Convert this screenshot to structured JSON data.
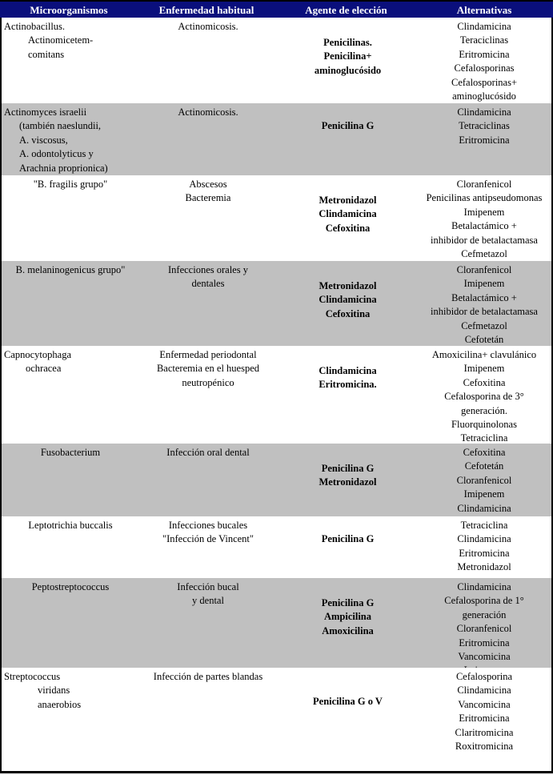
{
  "header": {
    "microorganismos": "Microorganismos",
    "enfermedad": "Enfermedad habitual",
    "agente": "Agente de elección",
    "alternativas": "Alternativas"
  },
  "colors": {
    "header_bg": "#0a0f7c",
    "stripe": "#c0c0c0"
  },
  "rows": [
    {
      "micro": [
        "Actinobacillus.",
        "Actinomicetem-",
        "comitans"
      ],
      "enfermedad": [
        "Actinomicosis."
      ],
      "agente": [
        "Penicilinas.",
        "Penicilina+",
        "aminoglucósido"
      ],
      "alternativas": [
        "Clindamicina",
        "Teraciclinas",
        "Eritromicina",
        "Cefalosporinas",
        "Cefalosporinas+",
        "aminoglucósido"
      ]
    },
    {
      "micro": [
        "Actinomyces israelii",
        "(también naeslundii,",
        "A. viscosus,",
        "A. odontolyticus y",
        "Arachnia proprionica)"
      ],
      "enfermedad": [
        "Actinomicosis."
      ],
      "agente": [
        "Penicilina G"
      ],
      "alternativas": [
        "Clindamicina",
        "Tetraciclinas",
        "Eritromicina"
      ]
    },
    {
      "micro": [
        "\"B. fragilis grupo\""
      ],
      "enfermedad": [
        "Abscesos",
        "Bacteremia"
      ],
      "agente": [
        "Metronidazol",
        "Clindamicina",
        "Cefoxitina"
      ],
      "alternativas": [
        "Cloranfenicol",
        "Penicilinas antipseudomonas",
        "Imipenem",
        "Betalactámico +",
        "inhibidor de betalactamasa",
        "Cefmetazol"
      ]
    },
    {
      "micro": [
        "B. melaninogenicus grupo\""
      ],
      "enfermedad": [
        "Infecciones orales y",
        "dentales"
      ],
      "agente": [
        "Metronidazol",
        "Clindamicina",
        "Cefoxitina"
      ],
      "alternativas": [
        "Cloranfenicol",
        "Imipenem",
        "Betalactámico +",
        "inhibidor de betalactamasa",
        "Cefmetazol",
        "Cefotetán"
      ]
    },
    {
      "micro": [
        "Capnocytophaga",
        "ochracea"
      ],
      "enfermedad": [
        "Enfermedad periodontal",
        "Bacteremia en el huesped",
        "neutropénico"
      ],
      "agente": [
        "Clindamicina",
        "Eritromicina."
      ],
      "alternativas": [
        "Amoxicilina+ clavulánico",
        "Imipenem",
        "Cefoxitina",
        "Cefalosporina de 3°",
        "generación.",
        "Fluorquinolonas",
        "Tetraciclina"
      ]
    },
    {
      "micro": [
        "Fusobacterium"
      ],
      "enfermedad": [
        "Infección oral dental"
      ],
      "agente": [
        "Penicilina G",
        "Metronidazol"
      ],
      "alternativas": [
        "Cefoxitina",
        "Cefotetán",
        "Cloranfenicol",
        "Imipenem",
        "Clindamicina"
      ]
    },
    {
      "micro": [
        "Leptotrichia buccalis"
      ],
      "enfermedad": [
        "Infecciones bucales",
        "\"Infección de Vincent\""
      ],
      "agente": [
        "Penicilina G"
      ],
      "alternativas": [
        "Tetraciclina",
        "Clindamicina",
        "Eritromicina",
        "Metronidazol"
      ]
    },
    {
      "micro": [
        "Peptostreptococcus"
      ],
      "enfermedad": [
        "Infección bucal",
        "y dental"
      ],
      "agente": [
        "Penicilina G",
        "Ampicilina",
        "Amoxicilina"
      ],
      "alternativas": [
        "Clindamicina",
        "Cefalosporina de 1°",
        "generación",
        "Cloranfenicol",
        "Eritromicina",
        "Vancomicina",
        "Imipenem"
      ]
    },
    {
      "micro": [
        "Streptococcus",
        "viridans",
        "anaerobios"
      ],
      "enfermedad": [
        "Infección de partes blandas"
      ],
      "agente": [
        "Penicilina G o V"
      ],
      "alternativas": [
        "Cefalosporina",
        "Clindamicina",
        "Vancomicina",
        "Eritromicina",
        "Claritromicina",
        "Roxitromicina"
      ]
    }
  ]
}
